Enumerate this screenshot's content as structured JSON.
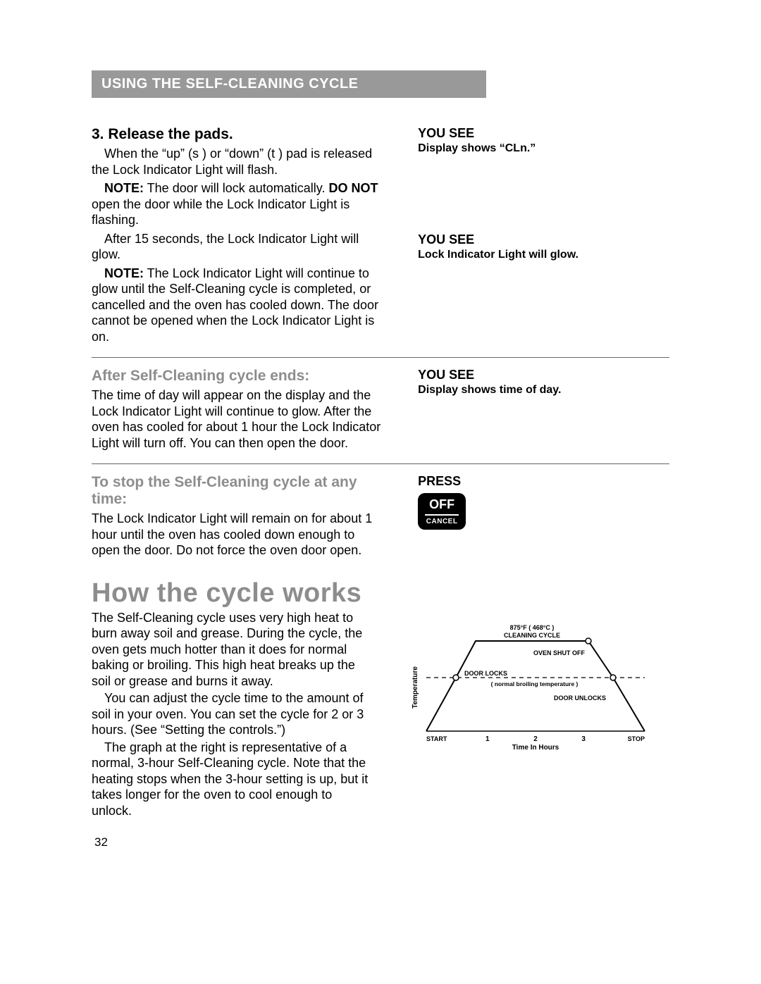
{
  "header": "USING THE SELF-CLEANING CYCLE",
  "step3": {
    "heading": "3. Release the pads.",
    "p1": "When the “up” (s ) or “down” (t ) pad is released the Lock Indicator Light will flash.",
    "note1_label": "NOTE:",
    "note1_a": " The door will lock automatically. ",
    "note1_bold": "DO NOT",
    "note1_b": " open the door while the Lock Indicator Light is flashing.",
    "p2": "After 15 seconds, the Lock Indicator Light will glow.",
    "note2_label": "NOTE:",
    "note2": " The Lock Indicator Light will continue to glow until the Self-Cleaning cycle is completed, or cancelled and the oven has cooled down. The door cannot be opened when the Lock Indicator Light is on."
  },
  "yousee1": {
    "title": "YOU SEE",
    "sub": "Display shows “CLn.”"
  },
  "yousee2": {
    "title": "YOU SEE",
    "sub": "Lock Indicator Light will glow."
  },
  "after": {
    "heading": "After Self-Cleaning cycle ends:",
    "p": "The time of day will appear on the display and the Lock Indicator Light will continue to glow. After the oven has cooled for about 1 hour the Lock Indicator Light will turn off. You can then open the door."
  },
  "yousee3": {
    "title": "YOU SEE",
    "sub": "Display shows time of day."
  },
  "stop": {
    "heading": "To stop the Self-Cleaning cycle at any time:",
    "p": "The Lock Indicator Light will remain on for about 1 hour until the oven has cooled down enough to open the door. Do not force the oven door open."
  },
  "press": {
    "label": "PRESS",
    "off": "OFF",
    "cancel": "CANCEL"
  },
  "how": {
    "heading": "How the cycle works",
    "p1": "The Self-Cleaning cycle uses very high heat to burn away soil and grease. During the cycle, the oven gets much hotter than it does for normal baking or broiling. This high heat breaks up the soil or grease and burns it away.",
    "p2": "You can adjust the cycle time to the amount of soil in your oven. You can set the cycle for 2 or 3 hours. (See “Setting the controls.”)",
    "p3": "The graph at the right is representative of a normal, 3-hour Self-Cleaning cycle. Note that the heating stops when the 3-hour setting is up, but it takes longer for the oven to cool enough to unlock."
  },
  "chart": {
    "y_label": "Temperature",
    "x_label": "Time In Hours",
    "x_ticks": {
      "start": "START",
      "t1": "1",
      "t2": "2",
      "t3": "3",
      "stop": "STOP"
    },
    "peak_label_a": "875°F  ( 468°C )",
    "peak_label_b": "CLEANING CYCLE",
    "shutoff": "OVEN SHUT OFF",
    "locks": "DOOR LOCKS",
    "broil": "( normal broiling temperature )",
    "unlocks": "DOOR UNLOCKS",
    "colors": {
      "line": "#000000",
      "dash": "#000000",
      "text": "#000000"
    },
    "points": {
      "start": [
        25,
        172
      ],
      "lock": [
        67,
        96
      ],
      "peak_l": [
        95,
        44
      ],
      "peak_r": [
        255,
        44
      ],
      "shutoff_pt": [
        255,
        44
      ],
      "unlock": [
        290,
        96
      ],
      "stop": [
        335,
        172
      ]
    },
    "dash_y": 96,
    "dash_x1": 25,
    "dash_x2": 335
  },
  "page_number": "32"
}
